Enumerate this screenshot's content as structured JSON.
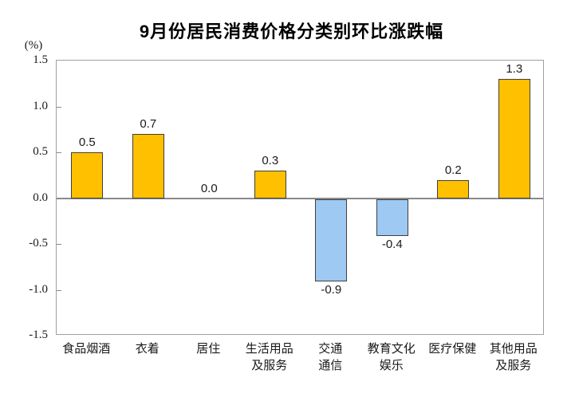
{
  "chart_data": {
    "type": "bar",
    "title": "9月份居民消费价格分类别环比涨跌幅",
    "ylabel": "(%)",
    "xlabel": "",
    "ylim": [
      -1.5,
      1.5
    ],
    "yticks": [
      1.5,
      1.0,
      0.5,
      0.0,
      -0.5,
      -1.0,
      -1.5
    ],
    "categories": [
      "食品烟酒",
      "衣着",
      "居住",
      "生活用品\n及服务",
      "交通\n通信",
      "教育文化\n娱乐",
      "医疗保健",
      "其他用品\n及服务"
    ],
    "values": [
      0.5,
      0.7,
      0.0,
      0.3,
      -0.9,
      -0.4,
      0.2,
      1.3
    ],
    "grid": false,
    "legend": "none",
    "colors": {
      "positive_bar": "#FFC000",
      "negative_bar": "#9DC9F3",
      "bar_border": "#404040",
      "axis": "#A0A0A0",
      "zero_line": "#8A8A8A",
      "text": "#1A1A1A"
    }
  }
}
